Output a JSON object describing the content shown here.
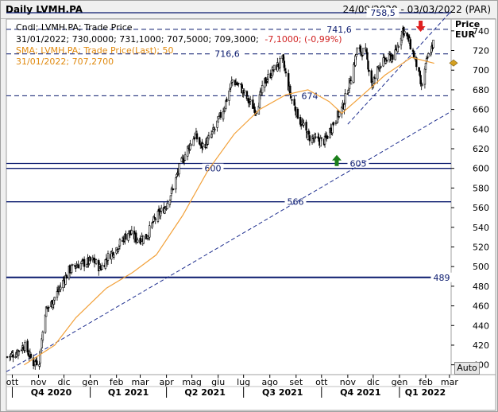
{
  "header": {
    "title": "Daily LVMH.PA",
    "date_range": "24/09/2020 - 03/03/2022 (PAR)"
  },
  "legend": {
    "candle_title": "Cndl; LVMH.PA; Trade Price",
    "candle_values": "31/01/2022; 730,0000; 731,1000; 707,5000; 709,3000;",
    "candle_change": "-7,1000; (-0,99%)",
    "sma_title": "SMA; LVMH.PA; Trade Price(Last); 50",
    "sma_values": "31/01/2022; 707,2700"
  },
  "axis": {
    "price_label": "Price",
    "currency": "EUR",
    "auto_button": "Auto",
    "months": [
      "ott",
      "nov",
      "dic",
      "gen",
      "feb",
      "mar",
      "apr",
      "mag",
      "giu",
      "lug",
      "ago",
      "set",
      "ott",
      "nov",
      "dic",
      "gen",
      "feb",
      "mar"
    ],
    "quarters": [
      "Q4 2020",
      "Q1 2021",
      "Q2 2021",
      "Q3 2021",
      "Q4 2021",
      "Q1 2022"
    ]
  },
  "colors": {
    "candle": "#000000",
    "sma": "#f2a13a",
    "support": "#0a1a6e",
    "trend": "#1f2f8f",
    "arrow_up": "#1a7f1a",
    "arrow_down": "#e02020",
    "legend_candle": "#000000",
    "legend_change": "#d02020",
    "legend_sma": "#e08a10",
    "marker": "#d4a020"
  },
  "chart_data": {
    "type": "candlestick",
    "title": "Daily LVMH.PA",
    "ylabel": "Price EUR",
    "ylim": [
      390,
      752
    ],
    "yticks": [
      400,
      420,
      440,
      460,
      480,
      500,
      520,
      540,
      560,
      580,
      600,
      620,
      640,
      660,
      680,
      700,
      720,
      740
    ],
    "x_start": "2020-09-24",
    "x_end": "2022-03-03",
    "horizontal_levels": [
      {
        "value": 758.5,
        "label": "758,5",
        "style": "solid"
      },
      {
        "value": 741.6,
        "label": "741,6",
        "style": "dashed"
      },
      {
        "value": 716.6,
        "label": "716,6",
        "style": "dashed"
      },
      {
        "value": 674,
        "label": "674",
        "style": "dashed"
      },
      {
        "value": 605,
        "label": "605",
        "style": "solid"
      },
      {
        "value": 600,
        "label": "600",
        "style": "solid"
      },
      {
        "value": 566,
        "label": "566",
        "style": "solid"
      },
      {
        "value": 489,
        "label": "489",
        "style": "solid"
      }
    ],
    "trend_lines": [
      {
        "from": [
          "2020-09-24",
          393
        ],
        "to": [
          "2022-03-03",
          658
        ]
      },
      {
        "from": [
          "2021-11-01",
          645
        ],
        "to": [
          "2022-03-03",
          760
        ]
      }
    ],
    "last_price": 707.3,
    "close": [
      [
        "2020-09-25",
        408
      ],
      [
        "2020-10-05",
        412
      ],
      [
        "2020-10-15",
        420
      ],
      [
        "2020-10-26",
        402
      ],
      [
        "2020-11-02",
        405
      ],
      [
        "2020-11-09",
        455
      ],
      [
        "2020-11-16",
        462
      ],
      [
        "2020-11-26",
        478
      ],
      [
        "2020-12-07",
        496
      ],
      [
        "2020-12-17",
        502
      ],
      [
        "2021-01-05",
        506
      ],
      [
        "2021-01-13",
        498
      ],
      [
        "2021-01-22",
        510
      ],
      [
        "2021-02-02",
        520
      ],
      [
        "2021-02-15",
        535
      ],
      [
        "2021-02-25",
        528
      ],
      [
        "2021-03-08",
        530
      ],
      [
        "2021-03-18",
        548
      ],
      [
        "2021-03-30",
        560
      ],
      [
        "2021-04-08",
        578
      ],
      [
        "2021-04-16",
        600
      ],
      [
        "2021-04-26",
        620
      ],
      [
        "2021-05-05",
        634
      ],
      [
        "2021-05-12",
        622
      ],
      [
        "2021-05-20",
        628
      ],
      [
        "2021-05-28",
        640
      ],
      [
        "2021-06-08",
        662
      ],
      [
        "2021-06-18",
        690
      ],
      [
        "2021-06-28",
        682
      ],
      [
        "2021-07-07",
        668
      ],
      [
        "2021-07-16",
        660
      ],
      [
        "2021-07-26",
        688
      ],
      [
        "2021-08-05",
        700
      ],
      [
        "2021-08-16",
        710
      ],
      [
        "2021-08-26",
        672
      ],
      [
        "2021-09-06",
        648
      ],
      [
        "2021-09-16",
        632
      ],
      [
        "2021-09-27",
        628
      ],
      [
        "2021-10-05",
        628
      ],
      [
        "2021-10-15",
        646
      ],
      [
        "2021-10-26",
        662
      ],
      [
        "2021-11-04",
        690
      ],
      [
        "2021-11-12",
        720
      ],
      [
        "2021-11-22",
        718
      ],
      [
        "2021-11-30",
        684
      ],
      [
        "2021-12-08",
        706
      ],
      [
        "2021-12-16",
        710
      ],
      [
        "2021-12-27",
        716
      ],
      [
        "2022-01-05",
        742
      ],
      [
        "2022-01-12",
        730
      ],
      [
        "2022-01-20",
        710
      ],
      [
        "2022-01-27",
        682
      ],
      [
        "2022-02-03",
        712
      ],
      [
        "2022-02-09",
        725
      ],
      [
        "2022-02-11",
        730
      ]
    ],
    "sma50": [
      [
        "2020-10-15",
        400
      ],
      [
        "2020-11-20",
        420
      ],
      [
        "2020-12-15",
        448
      ],
      [
        "2021-01-20",
        478
      ],
      [
        "2021-02-20",
        494
      ],
      [
        "2021-03-20",
        512
      ],
      [
        "2021-04-20",
        552
      ],
      [
        "2021-05-20",
        598
      ],
      [
        "2021-06-20",
        635
      ],
      [
        "2021-07-20",
        660
      ],
      [
        "2021-08-20",
        675
      ],
      [
        "2021-09-15",
        680
      ],
      [
        "2021-10-10",
        668
      ],
      [
        "2021-10-25",
        656
      ],
      [
        "2021-11-15",
        672
      ],
      [
        "2021-12-15",
        695
      ],
      [
        "2022-01-15",
        713
      ],
      [
        "2022-02-11",
        707
      ]
    ]
  }
}
